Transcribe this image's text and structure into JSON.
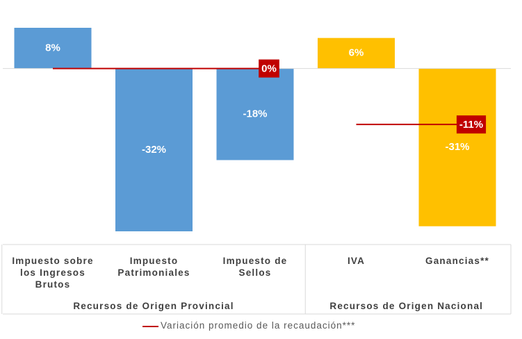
{
  "chart_data": {
    "type": "bar",
    "ylim": [
      -32,
      8
    ],
    "groups": [
      {
        "name": "Recursos de Origen Provincial",
        "color": "#5b9bd5",
        "categories": [
          "Impuesto sobre los Ingresos Brutos",
          "Impuesto Patrimoniales",
          "Impuesto de Sellos"
        ],
        "values": [
          8,
          -32,
          -18
        ],
        "value_labels": [
          "8%",
          "-32%",
          "-18%"
        ],
        "average": {
          "value": 0,
          "label": "0%"
        }
      },
      {
        "name": "Recursos de Origen Nacional",
        "color": "#ffc000",
        "categories": [
          "IVA",
          "Ganancias**"
        ],
        "values": [
          6,
          -31
        ],
        "value_labels": [
          "6%",
          "-31%"
        ],
        "average": {
          "value": -11,
          "label": "-11%"
        }
      }
    ],
    "legend": {
      "name": "Variación promedio de la recaudación***",
      "color": "#c00000"
    }
  }
}
